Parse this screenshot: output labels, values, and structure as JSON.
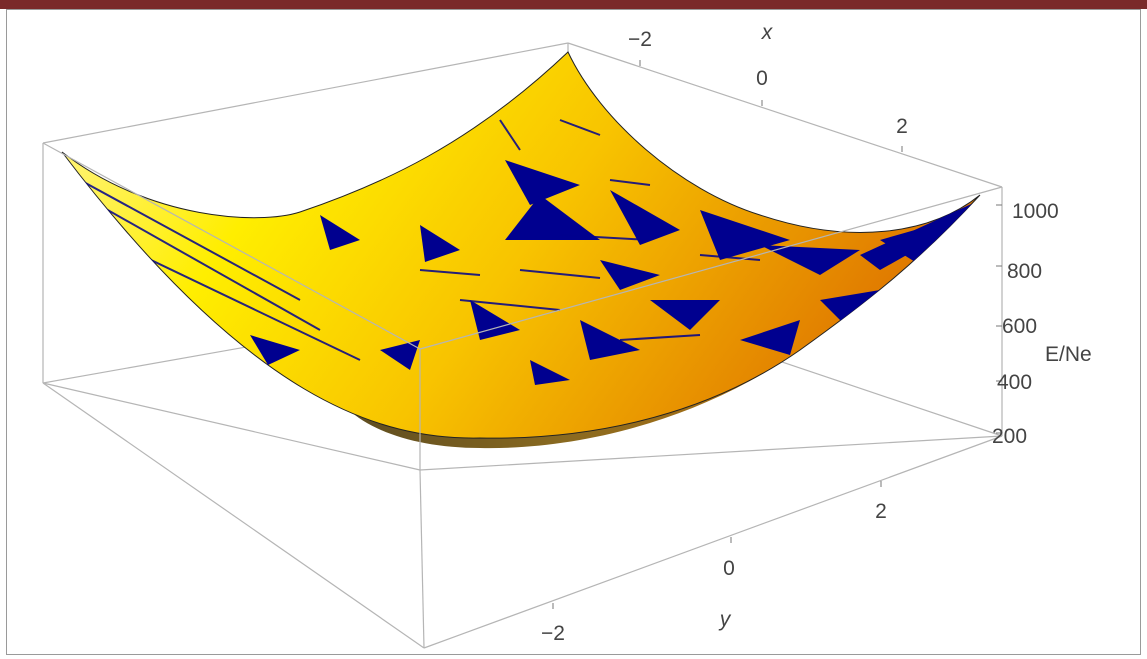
{
  "chart_data": {
    "type": "surface3d",
    "title": "",
    "xlabel": "x",
    "ylabel": "y",
    "zlabel": "E/Ne",
    "x_ticks": [
      "−2",
      "0",
      "2"
    ],
    "y_ticks": [
      "−2",
      "0",
      "2"
    ],
    "z_ticks": [
      "200",
      "400",
      "600",
      "800",
      "1000"
    ],
    "xlim": [
      -3,
      3
    ],
    "ylim": [
      -3,
      3
    ],
    "zlim": [
      150,
      1050
    ],
    "surface": "paraboloid E/Ne ≈ 200 + 45·(x² + y²)",
    "corner_values": [
      {
        "x": -3,
        "y": -3,
        "z": 1010
      },
      {
        "x": 3,
        "y": -3,
        "z": 1010
      },
      {
        "x": 3,
        "y": 3,
        "z": 1010
      },
      {
        "x": -3,
        "y": 3,
        "z": 1010
      }
    ],
    "minimum": {
      "x": 0,
      "y": 0,
      "z": 200
    },
    "box": true,
    "colors": {
      "surface_light": "#fff200",
      "surface_dark": "#e68a00",
      "artifacts": "#000099",
      "frame": "#9a9a9a",
      "top_bar": "#7a2a2a"
    }
  }
}
